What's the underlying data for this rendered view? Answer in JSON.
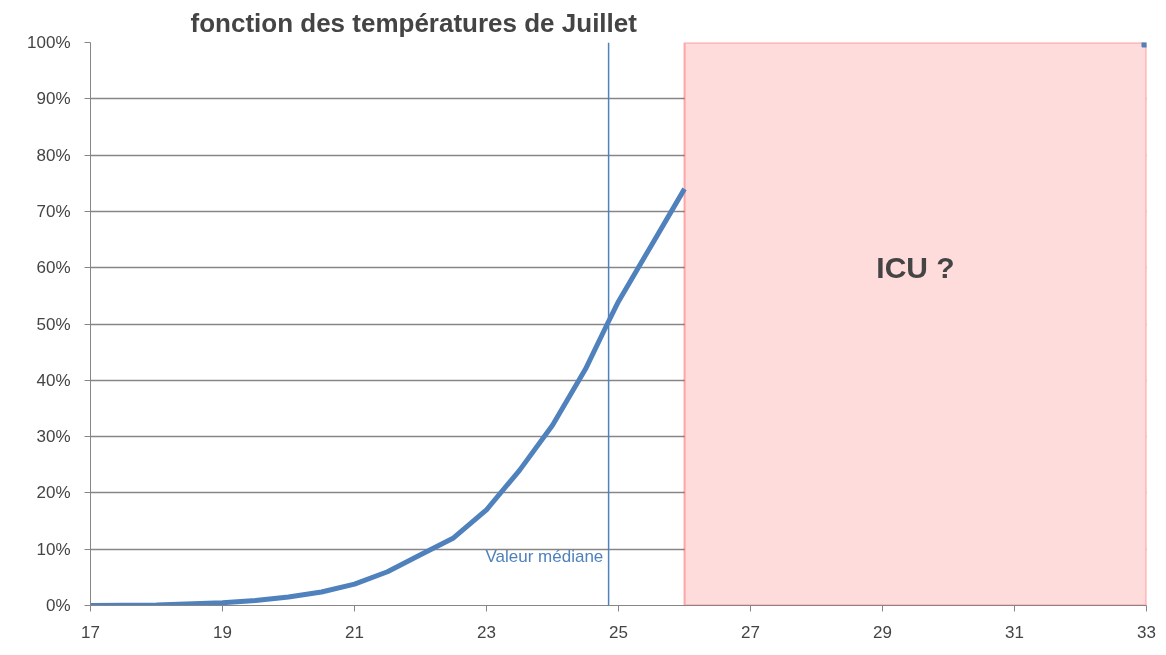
{
  "chart_data": {
    "type": "line",
    "title": "fonction des températures de Juillet",
    "x": [
      17,
      18,
      19,
      19.5,
      20,
      20.5,
      21,
      21.5,
      22,
      22.5,
      23,
      23.5,
      24,
      24.5,
      24.83,
      25,
      25.5,
      26,
      29.5,
      33
    ],
    "series": [
      {
        "color": "#4f81bd",
        "values": [
          0,
          0.1,
          0.5,
          0.9,
          1.5,
          2.4,
          3.8,
          6,
          9,
          12,
          17,
          24,
          32,
          42,
          50,
          54,
          64,
          74,
          null,
          100
        ]
      }
    ],
    "xlim": [
      17,
      33
    ],
    "xticks": [
      17,
      19,
      21,
      23,
      25,
      27,
      29,
      31,
      33
    ],
    "ylim": [
      0,
      100
    ],
    "yticks": [
      {
        "value": 0,
        "label": "0%"
      },
      {
        "value": 10,
        "label": "10%"
      },
      {
        "value": 20,
        "label": "20%"
      },
      {
        "value": 30,
        "label": "30%"
      },
      {
        "value": 40,
        "label": "40%"
      },
      {
        "value": 50,
        "label": "50%"
      },
      {
        "value": 60,
        "label": "60%"
      },
      {
        "value": 70,
        "label": "70%"
      },
      {
        "value": 80,
        "label": "80%"
      },
      {
        "value": 90,
        "label": "90%"
      },
      {
        "value": 100,
        "label": "100%"
      }
    ],
    "grid": "y",
    "marker": "none",
    "line_style": "solid",
    "ref_lines": [
      {
        "axis": "x",
        "value": 24.85,
        "label": "Valeur médiane",
        "color": "#4f81bd"
      }
    ],
    "bands": [
      {
        "axis": "x",
        "from": 26,
        "to": 33,
        "label": "ICU ?",
        "color": "#ffdcdc"
      }
    ]
  }
}
